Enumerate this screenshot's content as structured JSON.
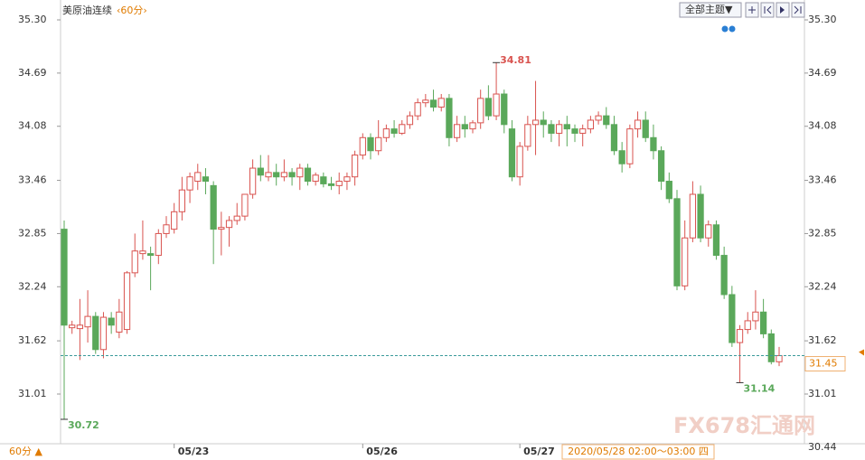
{
  "chart_data": {
    "type": "candlestick",
    "title": "美原油连续",
    "period": "‹60分›",
    "theme_button": "全部主题▼",
    "period_switch": "60分 ▲",
    "watermark": "FX678汇通网",
    "cursor_label": "2020/05/28 02:00～03:00 四",
    "categories": [
      null,
      null,
      null,
      null,
      null,
      null,
      null,
      null,
      null,
      null,
      null,
      null,
      null,
      null,
      "05/23",
      null,
      null,
      null,
      null,
      null,
      null,
      null,
      null,
      null,
      null,
      null,
      null,
      null,
      null,
      null,
      null,
      null,
      null,
      null,
      null,
      null,
      null,
      null,
      "05/26",
      null,
      null,
      null,
      null,
      null,
      null,
      null,
      null,
      null,
      null,
      null,
      null,
      null,
      null,
      null,
      null,
      null,
      null,
      null,
      "05/27",
      null,
      null,
      null,
      null,
      null,
      null,
      null,
      null,
      null,
      null,
      null,
      null,
      null,
      null,
      null,
      null,
      null,
      null,
      null,
      null,
      null,
      null,
      null,
      null,
      null,
      null,
      null,
      null,
      null,
      null,
      null,
      null,
      null
    ],
    "open": [
      32.9,
      31.77,
      31.76,
      31.78,
      31.9,
      31.52,
      31.88,
      31.72,
      31.75,
      32.4,
      32.62,
      32.62,
      32.6,
      32.85,
      32.9,
      33.1,
      33.35,
      33.45,
      33.5,
      33.4,
      32.9,
      32.92,
      33.0,
      33.05,
      33.3,
      33.6,
      33.5,
      33.55,
      33.5,
      33.55,
      33.5,
      33.6,
      33.45,
      33.5,
      33.42,
      33.4,
      33.45,
      33.5,
      33.75,
      33.95,
      33.8,
      33.95,
      34.05,
      34.0,
      34.1,
      34.2,
      34.35,
      34.38,
      34.3,
      34.4,
      33.95,
      34.1,
      34.05,
      34.12,
      34.4,
      34.2,
      34.45,
      34.05,
      33.5,
      33.85,
      34.1,
      34.15,
      34.1,
      34.0,
      34.1,
      34.05,
      34.0,
      34.05,
      34.15,
      34.2,
      34.1,
      33.8,
      33.65,
      34.05,
      34.15,
      33.95,
      33.8,
      33.45,
      33.25,
      32.25,
      32.8,
      33.3,
      32.8,
      32.95,
      32.6,
      32.15,
      31.6,
      31.75,
      31.85,
      31.95,
      31.7,
      31.38
    ],
    "high": [
      33.0,
      31.85,
      32.1,
      32.2,
      31.95,
      31.95,
      31.95,
      32.1,
      32.42,
      32.85,
      33.0,
      32.7,
      32.9,
      33.05,
      33.2,
      33.5,
      33.55,
      33.65,
      33.6,
      33.45,
      33.1,
      33.05,
      33.2,
      33.3,
      33.7,
      33.75,
      33.75,
      33.65,
      33.7,
      33.6,
      33.65,
      33.65,
      33.55,
      33.55,
      33.5,
      33.55,
      33.55,
      33.8,
      34.0,
      34.0,
      34.15,
      34.1,
      34.15,
      34.15,
      34.25,
      34.4,
      34.45,
      34.5,
      34.45,
      34.45,
      34.2,
      34.2,
      34.15,
      34.5,
      34.55,
      34.81,
      34.5,
      34.15,
      33.9,
      34.2,
      34.6,
      34.25,
      34.15,
      34.15,
      34.2,
      34.1,
      34.1,
      34.2,
      34.25,
      34.3,
      34.2,
      33.9,
      34.1,
      34.25,
      34.25,
      34.1,
      33.85,
      33.55,
      33.35,
      33.0,
      33.45,
      33.4,
      33.0,
      33.0,
      32.7,
      32.25,
      31.8,
      31.95,
      32.2,
      32.1,
      31.75,
      31.55
    ],
    "low": [
      30.72,
      31.7,
      31.4,
      31.6,
      31.47,
      31.42,
      31.7,
      31.65,
      31.7,
      32.35,
      32.55,
      32.2,
      32.5,
      32.8,
      32.85,
      33.0,
      33.2,
      33.35,
      33.3,
      32.5,
      32.6,
      32.7,
      32.95,
      33.0,
      33.25,
      33.45,
      33.45,
      33.4,
      33.45,
      33.4,
      33.35,
      33.4,
      33.4,
      33.38,
      33.35,
      33.3,
      33.35,
      33.4,
      33.7,
      33.7,
      33.75,
      33.9,
      33.95,
      33.98,
      34.05,
      34.15,
      34.3,
      34.25,
      34.25,
      33.85,
      33.9,
      33.95,
      34.0,
      34.05,
      34.15,
      34.15,
      34.0,
      33.45,
      33.4,
      33.8,
      33.75,
      33.95,
      33.9,
      33.85,
      33.85,
      33.9,
      33.85,
      34.0,
      34.1,
      34.05,
      33.75,
      33.55,
      33.6,
      33.95,
      33.9,
      33.7,
      33.35,
      33.2,
      32.2,
      32.2,
      32.75,
      32.75,
      32.7,
      32.55,
      32.1,
      31.55,
      31.14,
      31.7,
      31.75,
      31.65,
      31.35,
      31.33
    ],
    "close": [
      31.8,
      31.8,
      31.8,
      31.9,
      31.52,
      31.89,
      31.8,
      31.95,
      32.4,
      32.65,
      32.65,
      32.6,
      32.85,
      32.95,
      33.1,
      33.35,
      33.5,
      33.55,
      33.45,
      32.9,
      32.92,
      33.0,
      33.05,
      33.3,
      33.6,
      33.52,
      33.55,
      33.5,
      33.55,
      33.5,
      33.6,
      33.45,
      33.52,
      33.42,
      33.4,
      33.45,
      33.5,
      33.75,
      33.95,
      33.8,
      33.95,
      34.05,
      34.0,
      34.1,
      34.2,
      34.35,
      34.38,
      34.3,
      34.4,
      33.95,
      34.1,
      34.05,
      34.12,
      34.4,
      34.2,
      34.45,
      34.1,
      33.5,
      33.85,
      34.1,
      34.15,
      34.1,
      34.0,
      34.1,
      34.05,
      34.0,
      34.05,
      34.15,
      34.2,
      34.1,
      33.8,
      33.65,
      34.05,
      34.15,
      33.95,
      33.8,
      33.45,
      33.25,
      32.25,
      32.8,
      33.3,
      32.8,
      32.95,
      32.6,
      32.15,
      31.6,
      31.75,
      31.85,
      31.95,
      31.7,
      31.38,
      31.45
    ],
    "up_color": "#d9534f",
    "down_color": "#5aa85a",
    "price_line_color": "#3a9a9a",
    "ylim": [
      30.44,
      35.3
    ],
    "yticks": [
      {
        "value": 35.3,
        "label": "35.30"
      },
      34.69,
      {
        "value": 34.08,
        "label": "34.08"
      },
      33.46,
      32.85,
      32.24,
      31.62,
      31.01
    ],
    "max_label_index": 55,
    "min_label_index": 0,
    "low_label_index": 86
  }
}
